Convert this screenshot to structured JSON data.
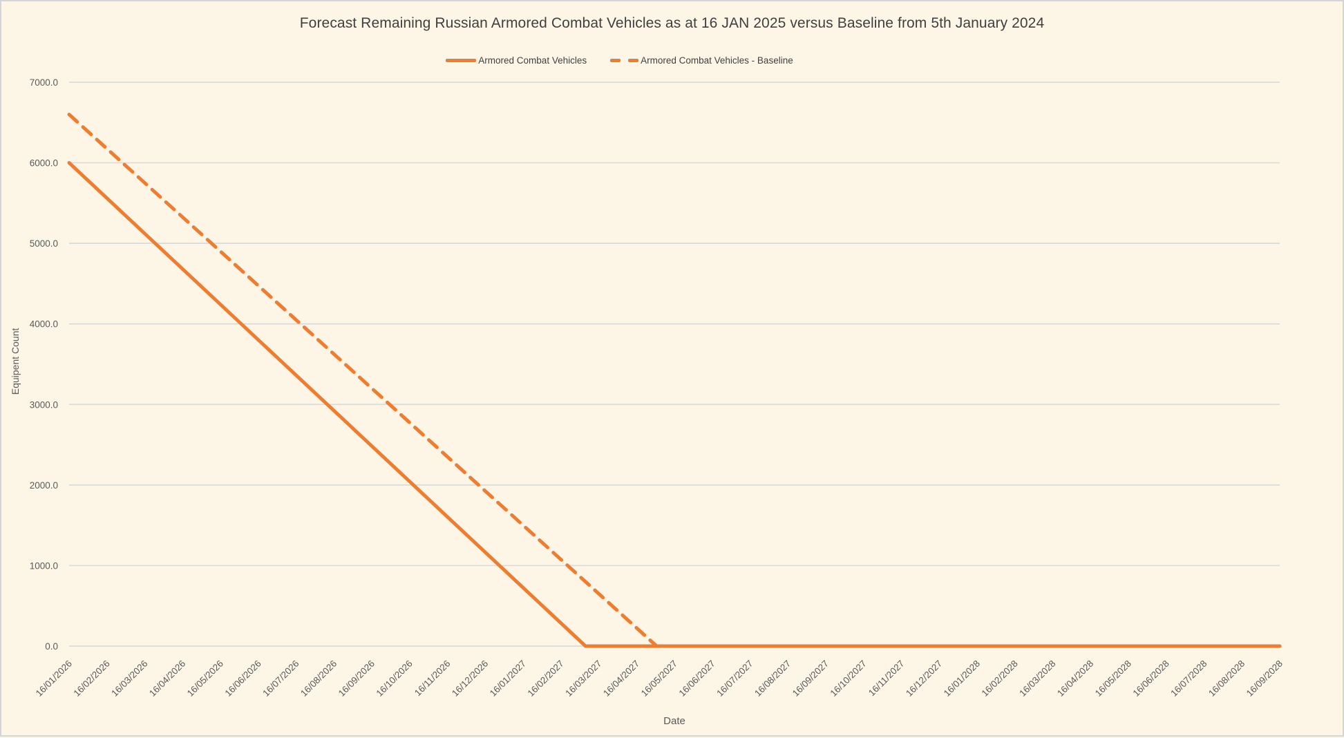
{
  "chart_data": {
    "type": "line",
    "title": "Forecast Remaining Russian Armored Combat Vehicles as at 16 JAN 2025 versus Baseline from 5th January 2024",
    "xlabel": "Date",
    "ylabel": "Equipent Count",
    "ylim": [
      0,
      7000
    ],
    "y_tick_labels": [
      "0.0",
      "1000.0",
      "2000.0",
      "3000.0",
      "4000.0",
      "5000.0",
      "6000.0",
      "7000.0"
    ],
    "grid": "horizontal-only",
    "legend_position": "top-center",
    "categories": [
      "16/01/2026",
      "16/02/2026",
      "16/03/2026",
      "16/04/2026",
      "16/05/2026",
      "16/06/2026",
      "16/07/2026",
      "16/08/2026",
      "16/09/2026",
      "16/10/2026",
      "16/11/2026",
      "16/12/2026",
      "16/01/2027",
      "16/02/2027",
      "16/03/2027",
      "16/04/2027",
      "16/05/2027",
      "16/06/2027",
      "16/07/2027",
      "16/08/2027",
      "16/09/2027",
      "16/10/2027",
      "16/11/2027",
      "16/12/2027",
      "16/01/2028",
      "16/02/2028",
      "16/03/2028",
      "16/04/2028",
      "16/05/2028",
      "16/06/2028",
      "16/07/2028",
      "16/08/2028",
      "16/09/2028"
    ],
    "series": [
      {
        "name": "Armored Combat Vehicles",
        "style": "solid",
        "color": "#ED7D31",
        "description": "Linear decline from 6000 on 16/01/2026 reaching 0 around early March 2027, then flat at 0 through 16/09/2028",
        "points_month_index": [
          [
            0,
            6000
          ],
          [
            13.65,
            0
          ],
          [
            32,
            0
          ]
        ]
      },
      {
        "name": "Armored Combat Vehicles - Baseline",
        "style": "dashed",
        "color": "#ED7D31",
        "description": "Linear decline from 6600 on 16/01/2026 reaching 0 around early May 2027, then flat at 0 through 16/09/2028",
        "points_month_index": [
          [
            0,
            6600
          ],
          [
            15.53,
            0
          ],
          [
            32,
            0
          ]
        ]
      }
    ]
  },
  "colors": {
    "accent_orange": "#ED7D31",
    "background": "#FDF6E7",
    "gridline": "#D9DBDA",
    "axis_text": "#595959",
    "title_text": "#3F3F3F",
    "border": "#D2D5D5"
  }
}
